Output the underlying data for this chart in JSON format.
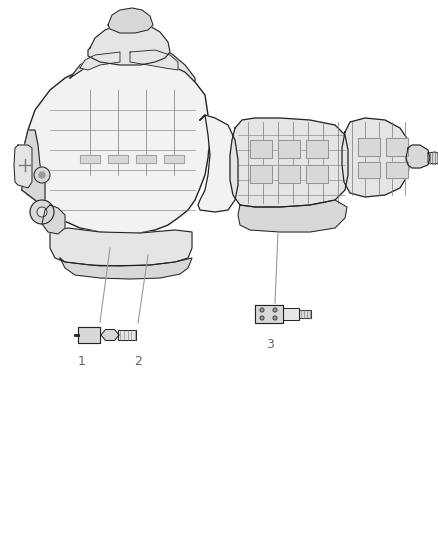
{
  "background_color": "#ffffff",
  "fig_width": 4.38,
  "fig_height": 5.33,
  "dpi": 100,
  "line_color": "#999999",
  "text_color": "#666666",
  "dark_color": "#222222",
  "gray_color": "#777777",
  "light_gray": "#cccccc",
  "fill_light": "#f2f2f2",
  "fill_mid": "#e5e5e5",
  "fill_dark": "#d8d8d8"
}
